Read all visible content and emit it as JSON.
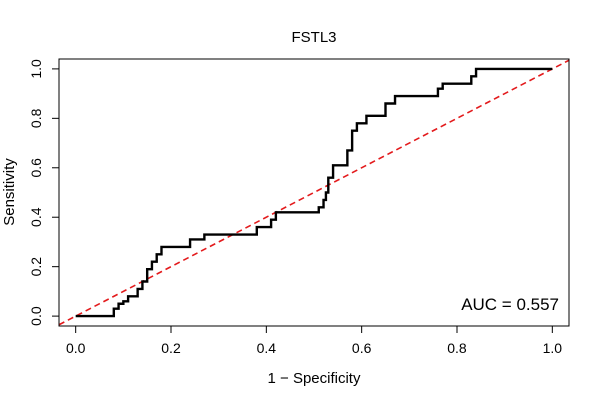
{
  "chart_data": {
    "type": "line",
    "title": "FSTL3",
    "xlabel": "1 − Specificity",
    "ylabel": "Sensitivity",
    "xlim": [
      -0.035,
      1.035
    ],
    "ylim": [
      -0.04,
      1.04
    ],
    "x_ticks": [
      "0.0",
      "0.2",
      "0.4",
      "0.6",
      "0.8",
      "1.0"
    ],
    "y_ticks": [
      "0.0",
      "0.2",
      "0.4",
      "0.6",
      "0.8",
      "1.0"
    ],
    "grid": false,
    "annotation": "AUC = 0.557",
    "colors": {
      "roc": "#000000",
      "reference": "#e31a1c"
    },
    "series": [
      {
        "style": "step",
        "x": [
          0.0,
          0.04,
          0.08,
          0.08,
          0.09,
          0.09,
          0.1,
          0.1,
          0.11,
          0.11,
          0.13,
          0.13,
          0.14,
          0.14,
          0.15,
          0.15,
          0.16,
          0.16,
          0.17,
          0.17,
          0.18,
          0.18,
          0.24,
          0.24,
          0.27,
          0.27,
          0.3,
          0.3,
          0.34,
          0.34,
          0.38,
          0.38,
          0.41,
          0.41,
          0.42,
          0.42,
          0.51,
          0.51,
          0.52,
          0.52,
          0.525,
          0.525,
          0.53,
          0.53,
          0.54,
          0.54,
          0.57,
          0.57,
          0.58,
          0.58,
          0.59,
          0.59,
          0.61,
          0.61,
          0.62,
          0.62,
          0.65,
          0.65,
          0.66,
          0.66,
          0.67,
          0.67,
          0.76,
          0.76,
          0.77,
          0.77,
          0.83,
          0.83,
          0.84,
          0.84,
          1.0
        ],
        "y": [
          0.0,
          0.0,
          0.0,
          0.03,
          0.03,
          0.05,
          0.05,
          0.06,
          0.06,
          0.08,
          0.08,
          0.11,
          0.11,
          0.14,
          0.14,
          0.19,
          0.19,
          0.22,
          0.22,
          0.25,
          0.25,
          0.28,
          0.28,
          0.31,
          0.31,
          0.33,
          0.33,
          0.33,
          0.33,
          0.33,
          0.33,
          0.36,
          0.36,
          0.39,
          0.39,
          0.42,
          0.42,
          0.44,
          0.44,
          0.47,
          0.47,
          0.5,
          0.5,
          0.56,
          0.56,
          0.61,
          0.61,
          0.67,
          0.67,
          0.75,
          0.75,
          0.78,
          0.78,
          0.81,
          0.81,
          0.81,
          0.81,
          0.86,
          0.86,
          0.86,
          0.86,
          0.89,
          0.89,
          0.92,
          0.92,
          0.94,
          0.94,
          0.97,
          0.97,
          1.0,
          1.0
        ]
      },
      {
        "style": "dashed",
        "x": [
          -0.035,
          1.035
        ],
        "y": [
          -0.035,
          1.035
        ]
      }
    ]
  }
}
